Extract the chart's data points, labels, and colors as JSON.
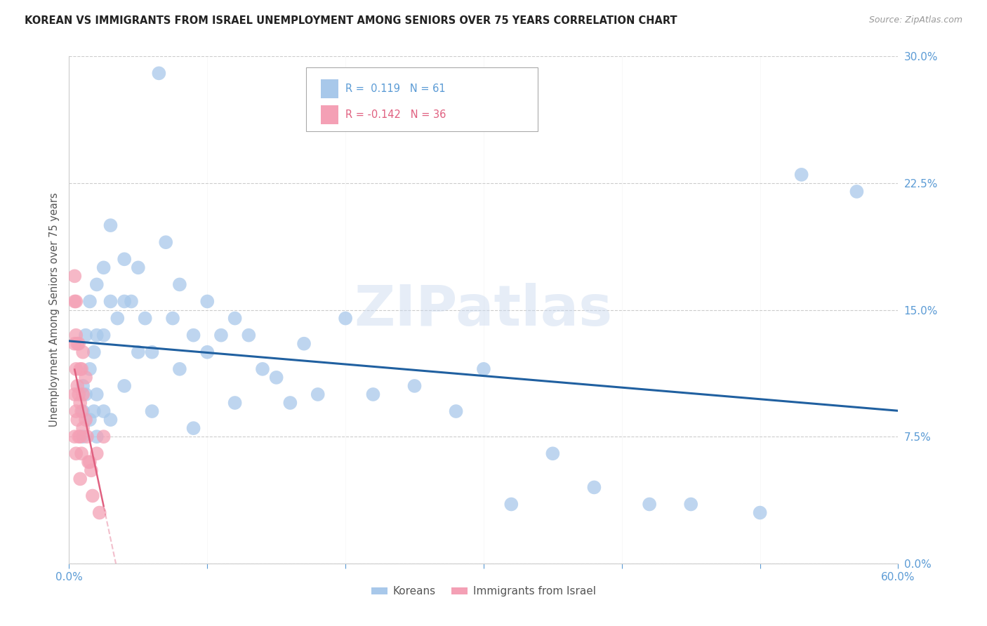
{
  "title": "KOREAN VS IMMIGRANTS FROM ISRAEL UNEMPLOYMENT AMONG SENIORS OVER 75 YEARS CORRELATION CHART",
  "source": "Source: ZipAtlas.com",
  "ylabel": "Unemployment Among Seniors over 75 years",
  "xlim": [
    0.0,
    0.6
  ],
  "ylim": [
    0.0,
    0.3
  ],
  "blue_color": "#a8c8ea",
  "pink_color": "#f4a0b5",
  "blue_line_color": "#2060a0",
  "pink_line_color": "#e06080",
  "watermark": "ZIPatlas",
  "koreans_x": [
    0.01,
    0.01,
    0.01,
    0.012,
    0.012,
    0.015,
    0.015,
    0.015,
    0.018,
    0.018,
    0.02,
    0.02,
    0.02,
    0.02,
    0.025,
    0.025,
    0.025,
    0.03,
    0.03,
    0.03,
    0.035,
    0.04,
    0.04,
    0.04,
    0.045,
    0.05,
    0.05,
    0.055,
    0.06,
    0.06,
    0.065,
    0.07,
    0.075,
    0.08,
    0.08,
    0.09,
    0.09,
    0.1,
    0.1,
    0.11,
    0.12,
    0.12,
    0.13,
    0.14,
    0.15,
    0.16,
    0.17,
    0.18,
    0.2,
    0.22,
    0.25,
    0.28,
    0.3,
    0.32,
    0.35,
    0.38,
    0.42,
    0.45,
    0.5,
    0.53,
    0.57
  ],
  "koreans_y": [
    0.105,
    0.09,
    0.075,
    0.135,
    0.1,
    0.155,
    0.115,
    0.085,
    0.125,
    0.09,
    0.165,
    0.135,
    0.1,
    0.075,
    0.175,
    0.135,
    0.09,
    0.2,
    0.155,
    0.085,
    0.145,
    0.18,
    0.155,
    0.105,
    0.155,
    0.175,
    0.125,
    0.145,
    0.125,
    0.09,
    0.29,
    0.19,
    0.145,
    0.165,
    0.115,
    0.135,
    0.08,
    0.155,
    0.125,
    0.135,
    0.145,
    0.095,
    0.135,
    0.115,
    0.11,
    0.095,
    0.13,
    0.1,
    0.145,
    0.1,
    0.105,
    0.09,
    0.115,
    0.035,
    0.065,
    0.045,
    0.035,
    0.035,
    0.03,
    0.23,
    0.22
  ],
  "israel_x": [
    0.004,
    0.004,
    0.004,
    0.004,
    0.004,
    0.005,
    0.005,
    0.005,
    0.005,
    0.005,
    0.006,
    0.006,
    0.006,
    0.007,
    0.007,
    0.007,
    0.008,
    0.008,
    0.008,
    0.008,
    0.009,
    0.009,
    0.009,
    0.01,
    0.01,
    0.01,
    0.012,
    0.012,
    0.013,
    0.014,
    0.015,
    0.016,
    0.017,
    0.02,
    0.022,
    0.025
  ],
  "israel_y": [
    0.17,
    0.155,
    0.13,
    0.1,
    0.075,
    0.155,
    0.135,
    0.115,
    0.09,
    0.065,
    0.13,
    0.105,
    0.085,
    0.13,
    0.1,
    0.075,
    0.115,
    0.095,
    0.075,
    0.05,
    0.115,
    0.09,
    0.065,
    0.125,
    0.1,
    0.08,
    0.11,
    0.085,
    0.075,
    0.06,
    0.06,
    0.055,
    0.04,
    0.065,
    0.03,
    0.075
  ]
}
